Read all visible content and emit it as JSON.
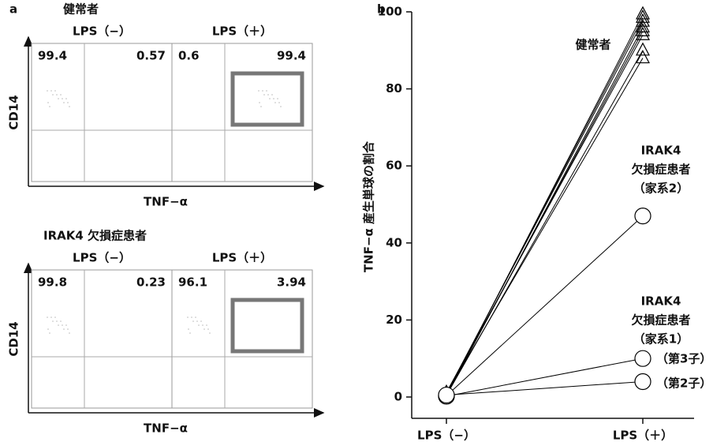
{
  "panel_a": {
    "label": "a",
    "x_label": "TNF−α",
    "y_label": "CD14",
    "groups": [
      {
        "title": "健常者",
        "plots": [
          {
            "condition": "LPS（−）",
            "upper_left": 99.4,
            "upper_right": 0.57
          },
          {
            "condition": "LPS（＋）",
            "upper_left": 0.6,
            "upper_right": 99.4
          }
        ]
      },
      {
        "title": "IRAK4 欠損症患者",
        "plots": [
          {
            "condition": "LPS（−）",
            "upper_left": 99.8,
            "upper_right": 0.23
          },
          {
            "condition": "LPS（＋）",
            "upper_left": 96.1,
            "upper_right": 3.94
          }
        ]
      }
    ]
  },
  "chart_data": {
    "type": "line",
    "label": "b",
    "y_label": "TNF−α 産生単球の割合",
    "categories": [
      "LPS（−）",
      "LPS（＋）"
    ],
    "ylim": [
      0,
      100
    ],
    "yticks": [
      0,
      20,
      40,
      60,
      80,
      100
    ],
    "series": [
      {
        "color": "#000000",
        "marker": "triangle",
        "values": [
          0.5,
          99.4
        ]
      },
      {
        "color": "#000000",
        "marker": "triangle",
        "values": [
          0.8,
          98.5
        ]
      },
      {
        "color": "#000000",
        "marker": "triangle",
        "values": [
          1.0,
          97.5
        ]
      },
      {
        "color": "#000000",
        "marker": "triangle",
        "values": [
          0.3,
          96
        ]
      },
      {
        "color": "#000000",
        "marker": "triangle",
        "values": [
          0.6,
          95
        ]
      },
      {
        "color": "#000000",
        "marker": "triangle",
        "values": [
          1.2,
          94
        ]
      },
      {
        "color": "#000000",
        "marker": "triangle",
        "values": [
          0.4,
          90
        ]
      },
      {
        "color": "#000000",
        "marker": "triangle",
        "values": [
          0.9,
          88
        ]
      },
      {
        "color": "#000000",
        "marker": "circle",
        "values": [
          0.3,
          47
        ]
      },
      {
        "color": "#000000",
        "marker": "circle",
        "values": [
          0.2,
          10
        ]
      },
      {
        "color": "#000000",
        "marker": "circle",
        "values": [
          0.5,
          4
        ]
      }
    ],
    "annotations": [
      [
        "健常者"
      ],
      [
        "IRAK4",
        "欠損症患者",
        "（家系2）"
      ],
      [
        "IRAK4",
        "欠損症患者",
        "（家系1）"
      ],
      [
        "（第3子）"
      ],
      [
        "（第2子）"
      ]
    ]
  }
}
